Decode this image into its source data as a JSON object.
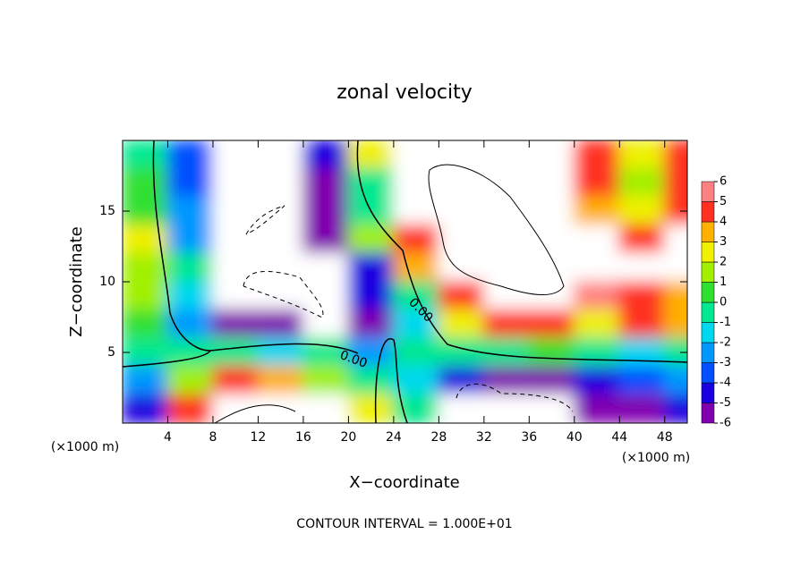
{
  "chart_data": {
    "type": "contour",
    "title": "zonal velocity",
    "x_label": "X−coordinate",
    "y_label": "Z−coordinate",
    "x_unit": "(×1000 m)",
    "x_unit_right": "(×1000 m)",
    "footer": "CONTOUR INTERVAL = 1.000E+01",
    "contour_labels": [
      "0.00",
      "0.00"
    ],
    "xlim": [
      0,
      50
    ],
    "ylim": [
      0,
      20
    ],
    "xticks": [
      4,
      8,
      12,
      16,
      20,
      24,
      28,
      32,
      36,
      40,
      44,
      48
    ],
    "yticks": [
      5,
      10,
      15
    ],
    "x": [
      2,
      6,
      10,
      14,
      18,
      22,
      26,
      30,
      34,
      38,
      42,
      46,
      50
    ],
    "y": [
      19,
      17,
      15,
      13,
      11,
      9,
      7,
      5,
      3,
      1
    ],
    "values": [
      [
        0,
        -3,
        8,
        8,
        -4,
        3,
        8,
        8,
        8,
        8,
        5,
        3,
        5
      ],
      [
        1,
        -3,
        8,
        8,
        -5,
        0,
        8,
        8,
        8,
        8,
        5,
        2,
        5
      ],
      [
        1,
        -2,
        8,
        8,
        -5,
        0,
        8,
        8,
        8,
        8,
        4,
        3,
        5
      ],
      [
        3,
        -2,
        8,
        8,
        -6,
        2,
        5,
        8,
        8,
        8,
        8,
        5,
        7
      ],
      [
        2,
        0,
        8,
        8,
        7,
        -4,
        4,
        8,
        8,
        8,
        8,
        7,
        7
      ],
      [
        2,
        -1,
        8,
        8,
        7,
        -4,
        0,
        5,
        8,
        8,
        6,
        5,
        4
      ],
      [
        1,
        -2,
        -6,
        -5,
        7,
        -5,
        -1,
        3,
        5,
        5,
        3,
        5,
        4
      ],
      [
        0,
        0,
        0,
        -1,
        0,
        -2,
        0,
        0,
        0,
        1,
        0,
        -1,
        0
      ],
      [
        -2,
        2,
        5,
        4,
        2,
        0,
        -1,
        -4,
        -5,
        -5,
        -4,
        -3,
        -2
      ],
      [
        -4,
        5,
        7,
        7,
        7,
        3,
        0,
        -7,
        -7,
        -7,
        -5,
        -6,
        -4
      ]
    ],
    "levels": [
      -6,
      -5,
      -4,
      -3,
      -2,
      -1,
      0,
      1,
      2,
      3,
      4,
      5,
      6
    ],
    "colors": [
      "#8000b0",
      "#1a00e0",
      "#0050ff",
      "#0098ff",
      "#00d8f0",
      "#00e890",
      "#30e030",
      "#a0f000",
      "#f0f000",
      "#ffb000",
      "#ff3020",
      "#ff8080"
    ]
  }
}
